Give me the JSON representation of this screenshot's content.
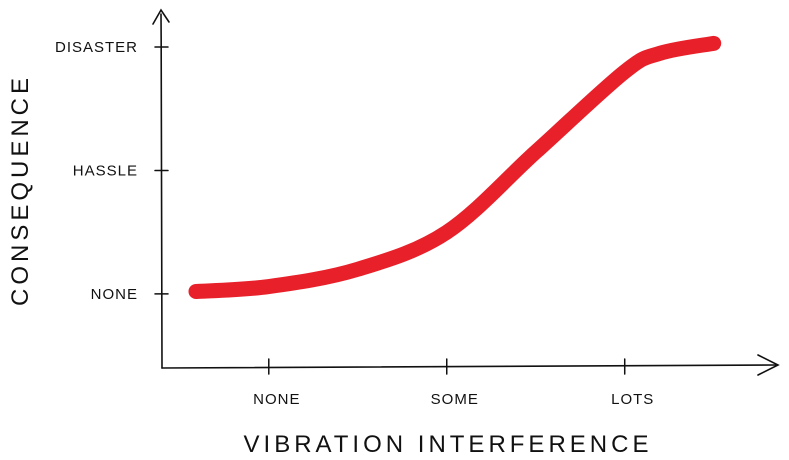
{
  "chart_data": {
    "type": "line",
    "title": "",
    "xlabel": "VIBRATION INTERFERENCE",
    "ylabel": "CONSEQUENCE",
    "x_ticks": [
      "NONE",
      "SOME",
      "LOTS"
    ],
    "y_ticks": [
      "NONE",
      "HASSLE",
      "DISASTER"
    ],
    "xlim": [
      -0.6,
      2.85
    ],
    "ylim": [
      -0.6,
      2.3
    ],
    "grid": false,
    "series": [
      {
        "color": "#e8202a",
        "x": [
          -0.6,
          0.0,
          0.5,
          1.0,
          1.5,
          2.0,
          2.2,
          2.5
        ],
        "y": [
          0.02,
          0.06,
          0.2,
          0.5,
          1.15,
          1.8,
          1.95,
          2.03
        ]
      }
    ]
  }
}
